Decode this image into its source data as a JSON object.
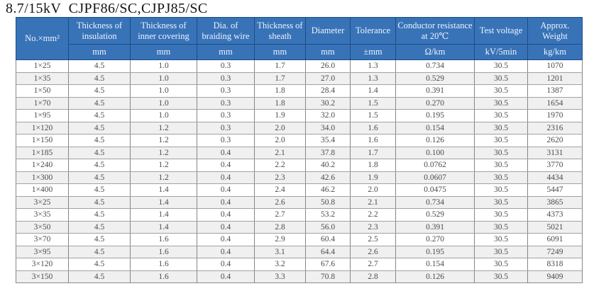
{
  "title": "8.7/15kV  CJPF86/SC,CJPJ85/SC",
  "colors": {
    "header_bg": "#3873b8",
    "header_text": "#eef4fb",
    "row_stripe": "#f0f0f0"
  },
  "table": {
    "columns": [
      {
        "label": "No.×mm²",
        "unit": ""
      },
      {
        "label": "Thickness of insulation",
        "unit": "mm"
      },
      {
        "label": "Thickness of inner covering",
        "unit": "mm"
      },
      {
        "label": "Dia. of braiding wire",
        "unit": "mm"
      },
      {
        "label": "Thickness of sheath",
        "unit": "mm"
      },
      {
        "label": "Diameter",
        "unit": "mm"
      },
      {
        "label": "Tolerance",
        "unit": "±mm"
      },
      {
        "label": "Conductor resistance at 20℃",
        "unit": "Ω/km"
      },
      {
        "label": "Test voltage",
        "unit": "kV/5min"
      },
      {
        "label": "Approx. Weight",
        "unit": "kg/km"
      }
    ],
    "rows": [
      [
        "1×25",
        "4.5",
        "1.0",
        "0.3",
        "1.7",
        "26.0",
        "1.3",
        "0.734",
        "30.5",
        "1070"
      ],
      [
        "1×35",
        "4.5",
        "1.0",
        "0.3",
        "1.7",
        "27.0",
        "1.3",
        "0.529",
        "30.5",
        "1201"
      ],
      [
        "1×50",
        "4.5",
        "1.0",
        "0.3",
        "1.8",
        "28.4",
        "1.4",
        "0.391",
        "30.5",
        "1387"
      ],
      [
        "1×70",
        "4.5",
        "1.0",
        "0.3",
        "1.8",
        "30.2",
        "1.5",
        "0.270",
        "30.5",
        "1654"
      ],
      [
        "1×95",
        "4.5",
        "1.0",
        "0.3",
        "1.9",
        "32.0",
        "1.5",
        "0.195",
        "30.5",
        "1970"
      ],
      [
        "1×120",
        "4.5",
        "1.2",
        "0.3",
        "2.0",
        "34.0",
        "1.6",
        "0.154",
        "30.5",
        "2316"
      ],
      [
        "1×150",
        "4.5",
        "1.2",
        "0.3",
        "2.0",
        "35.4",
        "1.6",
        "0.126",
        "30.5",
        "2620"
      ],
      [
        "1×185",
        "4.5",
        "1.2",
        "0.4",
        "2.1",
        "37.8",
        "1.7",
        "0.100",
        "30.5",
        "3131"
      ],
      [
        "1×240",
        "4.5",
        "1.2",
        "0.4",
        "2.2",
        "40.2",
        "1.8",
        "0.0762",
        "30.5",
        "3770"
      ],
      [
        "1×300",
        "4.5",
        "1.2",
        "0.4",
        "2.3",
        "42.6",
        "1.9",
        "0.0607",
        "30.5",
        "4434"
      ],
      [
        "1×400",
        "4.5",
        "1.4",
        "0.4",
        "2.4",
        "46.2",
        "2.0",
        "0.0475",
        "30.5",
        "5447"
      ],
      [
        "3×25",
        "4.5",
        "1.4",
        "0.4",
        "2.6",
        "50.8",
        "2.1",
        "0.734",
        "30.5",
        "3865"
      ],
      [
        "3×35",
        "4.5",
        "1.4",
        "0.4",
        "2.7",
        "53.2",
        "2.2",
        "0.529",
        "30.5",
        "4373"
      ],
      [
        "3×50",
        "4.5",
        "1.4",
        "0.4",
        "2.8",
        "56.0",
        "2.3",
        "0.391",
        "30.5",
        "5021"
      ],
      [
        "3×70",
        "4.5",
        "1.6",
        "0.4",
        "2.9",
        "60.4",
        "2.5",
        "0.270",
        "30.5",
        "6091"
      ],
      [
        "3×95",
        "4.5",
        "1.6",
        "0.4",
        "3.1",
        "64.4",
        "2.6",
        "0.195",
        "30.5",
        "7249"
      ],
      [
        "3×120",
        "4.5",
        "1.6",
        "0.4",
        "3.2",
        "67.6",
        "2.7",
        "0.154",
        "30.5",
        "8318"
      ],
      [
        "3×150",
        "4.5",
        "1.6",
        "0.4",
        "3.3",
        "70.8",
        "2.8",
        "0.126",
        "30.5",
        "9409"
      ]
    ]
  }
}
